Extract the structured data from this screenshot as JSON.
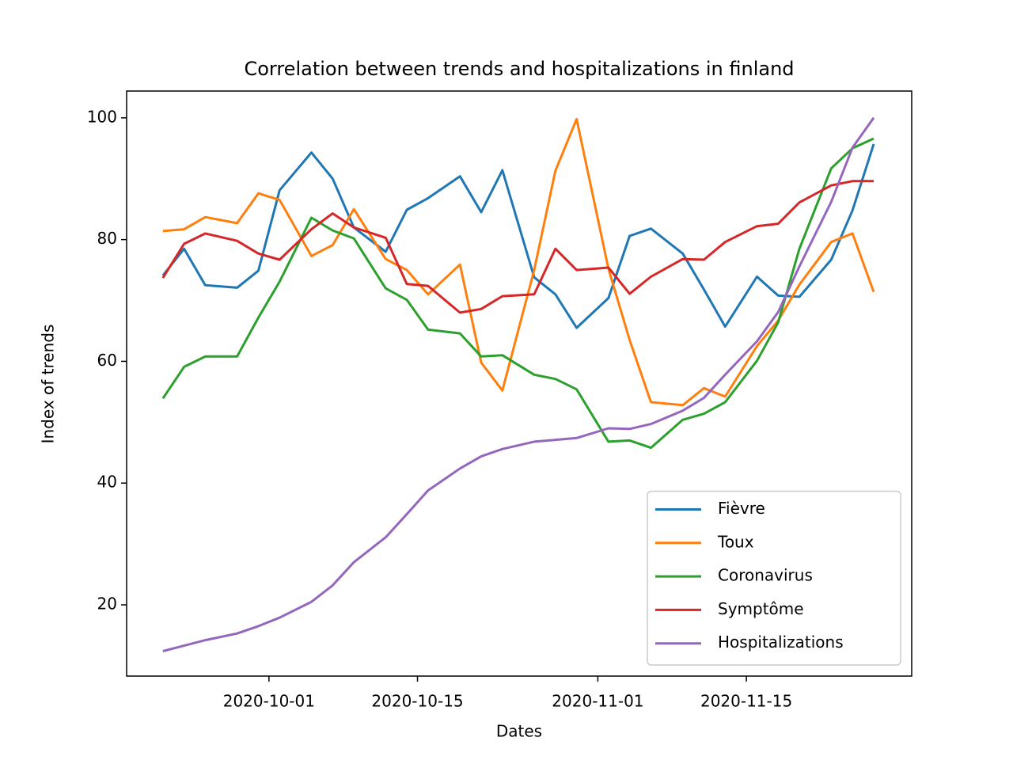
{
  "chart_data": {
    "type": "line",
    "title": "Correlation between trends and hospitalizations in finland",
    "xlabel": "Dates",
    "ylabel": "Index of trends",
    "x": [
      "2020-09-21",
      "2020-09-23",
      "2020-09-25",
      "2020-09-28",
      "2020-09-30",
      "2020-10-02",
      "2020-10-05",
      "2020-10-07",
      "2020-10-09",
      "2020-10-12",
      "2020-10-14",
      "2020-10-16",
      "2020-10-19",
      "2020-10-21",
      "2020-10-23",
      "2020-10-26",
      "2020-10-28",
      "2020-10-30",
      "2020-11-02",
      "2020-11-04",
      "2020-11-06",
      "2020-11-09",
      "2020-11-11",
      "2020-11-13",
      "2020-11-16",
      "2020-11-18",
      "2020-11-20",
      "2020-11-23",
      "2020-11-25",
      "2020-11-27"
    ],
    "series": [
      {
        "name": "Fièvre",
        "color": "#1f77b4",
        "values": [
          74.1,
          78.5,
          72.5,
          72.1,
          74.9,
          88.1,
          94.3,
          90.0,
          82.0,
          78.0,
          84.9,
          86.8,
          90.4,
          84.5,
          91.4,
          73.8,
          71.0,
          65.5,
          70.4,
          80.6,
          81.8,
          77.7,
          71.8,
          65.7,
          73.9,
          70.8,
          70.6,
          76.7,
          84.8,
          95.7
        ]
      },
      {
        "name": "Toux",
        "color": "#ff7f0e",
        "values": [
          81.4,
          81.7,
          83.7,
          82.7,
          87.6,
          86.5,
          77.3,
          79.1,
          85.0,
          76.8,
          75.0,
          71.0,
          75.9,
          59.8,
          55.2,
          75.0,
          91.3,
          99.8,
          75.2,
          63.5,
          53.3,
          52.8,
          55.6,
          54.2,
          62.5,
          66.7,
          72.6,
          79.6,
          81.0,
          71.4
        ]
      },
      {
        "name": "Coronavirus",
        "color": "#2ca02c",
        "values": [
          53.9,
          59.1,
          60.8,
          60.8,
          67.2,
          73.1,
          83.6,
          81.5,
          80.2,
          72.0,
          70.1,
          65.2,
          64.6,
          60.8,
          61.0,
          57.8,
          57.1,
          55.4,
          46.8,
          47.0,
          45.8,
          50.4,
          51.4,
          53.3,
          60.1,
          66.4,
          78.5,
          91.7,
          95.0,
          96.6
        ]
      },
      {
        "name": "Symptôme",
        "color": "#d62728",
        "values": [
          73.7,
          79.3,
          81.0,
          79.8,
          77.7,
          76.7,
          81.7,
          84.3,
          82.0,
          80.3,
          72.7,
          72.4,
          68.0,
          68.6,
          70.7,
          71.0,
          78.5,
          75.0,
          75.4,
          71.1,
          73.9,
          76.8,
          76.7,
          79.6,
          82.2,
          82.6,
          86.1,
          88.9,
          89.6,
          89.6
        ]
      },
      {
        "name": "Hospitalizations",
        "color": "#9467bd",
        "values": [
          12.4,
          13.3,
          14.2,
          15.3,
          16.5,
          17.9,
          20.5,
          23.2,
          27.0,
          31.1,
          34.9,
          38.8,
          42.4,
          44.4,
          45.6,
          46.8,
          47.1,
          47.4,
          49.0,
          48.9,
          49.7,
          51.9,
          54.0,
          57.8,
          63.3,
          68.1,
          75.6,
          86.2,
          95.1,
          100.0
        ]
      }
    ],
    "xlim": [
      "2020-09-17T14:00:00Z",
      "2020-11-30T14:00:00Z"
    ],
    "xticks": [
      "2020-10-01",
      "2020-10-15",
      "2020-11-01",
      "2020-11-15"
    ],
    "ylim": [
      8.3,
      104.4
    ],
    "yticks": [
      20,
      40,
      60,
      80,
      100
    ],
    "legend": "lower right"
  }
}
